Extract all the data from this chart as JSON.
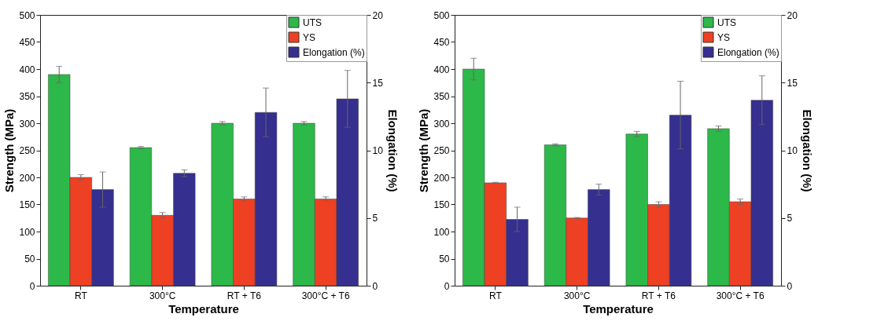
{
  "chart_data": [
    {
      "type": "bar",
      "categories": [
        "RT",
        "300°C",
        "RT + T6",
        "300°C + T6"
      ],
      "xlabel": "Temperature",
      "ylabel": "Strength (MPa)",
      "y2label": "Elongation (%)",
      "ylim": [
        0,
        500
      ],
      "yticks": [
        0,
        50,
        100,
        150,
        200,
        250,
        300,
        350,
        400,
        450,
        500
      ],
      "y2lim": [
        0,
        20
      ],
      "y2ticks": [
        0,
        5,
        10,
        15,
        20
      ],
      "legend": "top right",
      "series": [
        {
          "name": "UTS",
          "color": "#2db84a",
          "values": [
            390,
            255,
            300,
            300
          ],
          "errors": [
            15,
            2,
            3,
            3
          ]
        },
        {
          "name": "YS",
          "color": "#ee4023",
          "values": [
            200,
            130,
            160,
            160
          ],
          "errors": [
            5,
            5,
            4,
            4
          ]
        },
        {
          "name": "Elongation (%)",
          "color": "#352f8f",
          "axis": "y2",
          "values": [
            7.1,
            8.3,
            12.8,
            13.8
          ],
          "errors": [
            1.3,
            0.25,
            1.8,
            2.1
          ]
        }
      ]
    },
    {
      "type": "bar",
      "categories": [
        "RT",
        "300°C",
        "RT + T6",
        "300°C + T6"
      ],
      "xlabel": "Temperature",
      "ylabel": "Strength (MPa)",
      "y2label": "Elongation (%)",
      "ylim": [
        0,
        500
      ],
      "yticks": [
        0,
        50,
        100,
        150,
        200,
        250,
        300,
        350,
        400,
        450,
        500
      ],
      "y2lim": [
        0,
        20
      ],
      "y2ticks": [
        0,
        5,
        10,
        15,
        20
      ],
      "legend": "top right",
      "series": [
        {
          "name": "UTS",
          "color": "#2db84a",
          "values": [
            400,
            260,
            280,
            290
          ],
          "errors": [
            20,
            2,
            5,
            5
          ]
        },
        {
          "name": "YS",
          "color": "#ee4023",
          "values": [
            190,
            125,
            150,
            155
          ],
          "errors": [
            1,
            1,
            5,
            5
          ]
        },
        {
          "name": "Elongation (%)",
          "color": "#352f8f",
          "axis": "y2",
          "values": [
            4.9,
            7.1,
            12.6,
            13.7
          ],
          "errors": [
            0.9,
            0.4,
            2.5,
            1.8
          ]
        }
      ]
    }
  ]
}
